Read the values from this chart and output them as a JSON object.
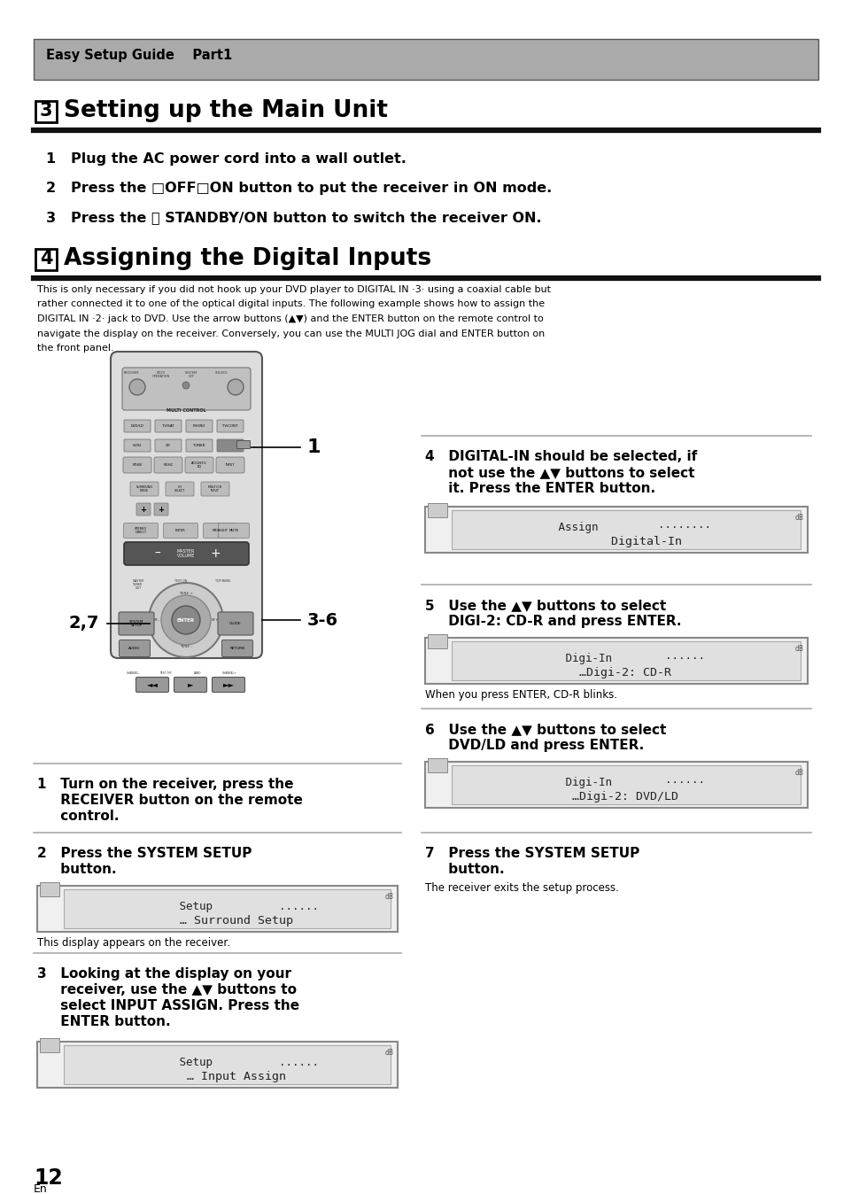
{
  "page_bg": "#ffffff",
  "header_bg": "#aaaaaa",
  "header_text": "Easy Setup Guide    Part1",
  "section3_num": "3",
  "section3_title": " Setting up the Main Unit",
  "section4_num": "4",
  "section4_title": " Assigning the Digital Inputs",
  "step1_text": "1   Plug the AC power cord into a wall outlet.",
  "step2_text": "2   Press the □OFF□ON button to put the receiver in ON mode.",
  "step3_text": "3   Press the ⏻ STANDBY/ON button to switch the receiver ON.",
  "body_line1": "This is only necessary if you did not hook up your DVD player to DIGITAL IN ·3· using a coaxial cable but",
  "body_line2": "rather connected it to one of the optical digital inputs. The following example shows how to assign the",
  "body_line3": "DIGITAL IN ·2· jack to DVD. Use the arrow buttons (▲▼) and the ENTER button on the remote control to",
  "body_line4": "navigate the display on the receiver. Conversely, you can use the MULTI JOG dial and ENTER button on",
  "body_line5": "the front panel.",
  "left_step1_line1": "1   Turn on the receiver, press the",
  "left_step1_line2": "     RECEIVER button on the remote",
  "left_step1_line3": "     control.",
  "left_step2_line1": "2   Press the SYSTEM SETUP",
  "left_step2_line2": "     button.",
  "left_step2_disp1": "       Setup          ......",
  "left_step2_disp2": "   … Surround Setup",
  "left_step2_caption": "This display appears on the receiver.",
  "left_step3_line1": "3   Looking at the display on your",
  "left_step3_line2": "     receiver, use the ▲▼ buttons to",
  "left_step3_line3": "     select INPUT ASSIGN. Press the",
  "left_step3_line4": "     ENTER button.",
  "left_step3_disp1": "       Setup          ......",
  "left_step3_disp2": "   … Input Assign",
  "right_step4_line1": "4   DIGITAL-IN should be selected, if",
  "right_step4_line2": "     not use the ▲▼ buttons to select",
  "right_step4_line3": "     it. Press the ENTER button.",
  "right_step4_disp1": "   Assign         ········",
  "right_step4_disp2": "      Digital-In",
  "right_step5_line1": "5   Use the ▲▼ buttons to select",
  "right_step5_line2": "     DIGI-2: CD-R and press ENTER.",
  "right_step5_disp1": "   Digi-In        ······",
  "right_step5_disp2": "…Digi-2: CD-R",
  "right_step5_caption": "When you press ENTER, CD-R blinks.",
  "right_step6_line1": "6   Use the ▲▼ buttons to select",
  "right_step6_line2": "     DVD/LD and press ENTER.",
  "right_step6_disp1": "   Digi-In        ······",
  "right_step6_disp2": "…Digi-2: DVD/LD",
  "right_step7_line1": "7   Press the SYSTEM SETUP",
  "right_step7_line2": "     button.",
  "right_step7_caption": "The receiver exits the setup process.",
  "page_num": "12",
  "page_sub": "En"
}
